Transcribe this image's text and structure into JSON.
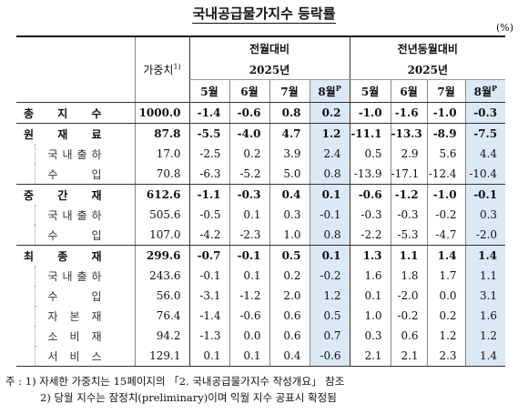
{
  "title": "국내공급물가지수 등락률",
  "unit": "(%)",
  "header": {
    "weight": "가중치",
    "weight_note": "1)",
    "group1": "전월대비",
    "group2": "전년동월대비",
    "year1": "2025년",
    "year2": "2025년",
    "months1": [
      "5월",
      "6월",
      "7월",
      "8월"
    ],
    "months2": [
      "5월",
      "6월",
      "7월",
      "8월"
    ],
    "prelim_mark": "P"
  },
  "rows": [
    {
      "label": "총 지 수",
      "weight": "1000.0",
      "mom": [
        "-1.4",
        "-0.6",
        "0.8",
        "0.2"
      ],
      "yoy": [
        "-1.0",
        "-1.6",
        "-1.0",
        "-0.3"
      ]
    },
    {
      "label": "원 재 료",
      "weight": "87.8",
      "mom": [
        "-5.5",
        "-4.0",
        "4.7",
        "1.2"
      ],
      "yoy": [
        "-11.1",
        "-13.3",
        "-8.9",
        "-7.5"
      ]
    },
    {
      "label": "국 내 출 하",
      "weight": "17.0",
      "mom": [
        "-2.5",
        "0.2",
        "3.9",
        "2.4"
      ],
      "yoy": [
        "0.5",
        "2.9",
        "5.6",
        "4.4"
      ]
    },
    {
      "label": "수 입",
      "weight": "70.8",
      "mom": [
        "-6.3",
        "-5.2",
        "5.0",
        "0.8"
      ],
      "yoy": [
        "-13.9",
        "-17.1",
        "-12.4",
        "-10.4"
      ]
    },
    {
      "label": "중 간 재",
      "weight": "612.6",
      "mom": [
        "-1.1",
        "-0.3",
        "0.4",
        "0.1"
      ],
      "yoy": [
        "-0.6",
        "-1.2",
        "-1.0",
        "-0.1"
      ]
    },
    {
      "label": "국 내 출 하",
      "weight": "505.6",
      "mom": [
        "-0.5",
        "0.1",
        "0.3",
        "-0.1"
      ],
      "yoy": [
        "-0.3",
        "-0.3",
        "-0.2",
        "0.3"
      ]
    },
    {
      "label": "수 입",
      "weight": "107.0",
      "mom": [
        "-4.2",
        "-2.3",
        "1.0",
        "0.8"
      ],
      "yoy": [
        "-2.2",
        "-5.3",
        "-4.7",
        "-2.0"
      ]
    },
    {
      "label": "최 종 재",
      "weight": "299.6",
      "mom": [
        "-0.7",
        "-0.1",
        "0.5",
        "0.1"
      ],
      "yoy": [
        "1.3",
        "1.1",
        "1.4",
        "1.4"
      ]
    },
    {
      "label": "국 내 출 하",
      "weight": "243.6",
      "mom": [
        "-0.1",
        "0.1",
        "0.2",
        "-0.2"
      ],
      "yoy": [
        "1.6",
        "1.8",
        "1.7",
        "1.1"
      ]
    },
    {
      "label": "수 입",
      "weight": "56.0",
      "mom": [
        "-3.1",
        "-1.2",
        "2.0",
        "1.2"
      ],
      "yoy": [
        "0.1",
        "-2.0",
        "0.0",
        "3.1"
      ]
    },
    {
      "label": "자 본 재",
      "weight": "76.4",
      "mom": [
        "-1.4",
        "-0.6",
        "0.6",
        "0.5"
      ],
      "yoy": [
        "1.0",
        "-0.2",
        "0.2",
        "1.6"
      ]
    },
    {
      "label": "소 비 재",
      "weight": "94.2",
      "mom": [
        "-1.3",
        "0.0",
        "0.6",
        "0.7"
      ],
      "yoy": [
        "0.3",
        "0.6",
        "1.2",
        "1.2"
      ]
    },
    {
      "label": "서 비 스",
      "weight": "129.1",
      "mom": [
        "0.1",
        "0.1",
        "0.4",
        "-0.6"
      ],
      "yoy": [
        "2.1",
        "2.1",
        "2.3",
        "1.4"
      ]
    }
  ],
  "notes": {
    "prefix": "주 :",
    "n1": "1) 자세한 가중치는 15페이지의 「2. 국내공급물가지수 작성개요」 참조",
    "n2": "2) 당월 지수는 잠정치(preliminary)이며 익월 지수 공표시 확정됨"
  }
}
